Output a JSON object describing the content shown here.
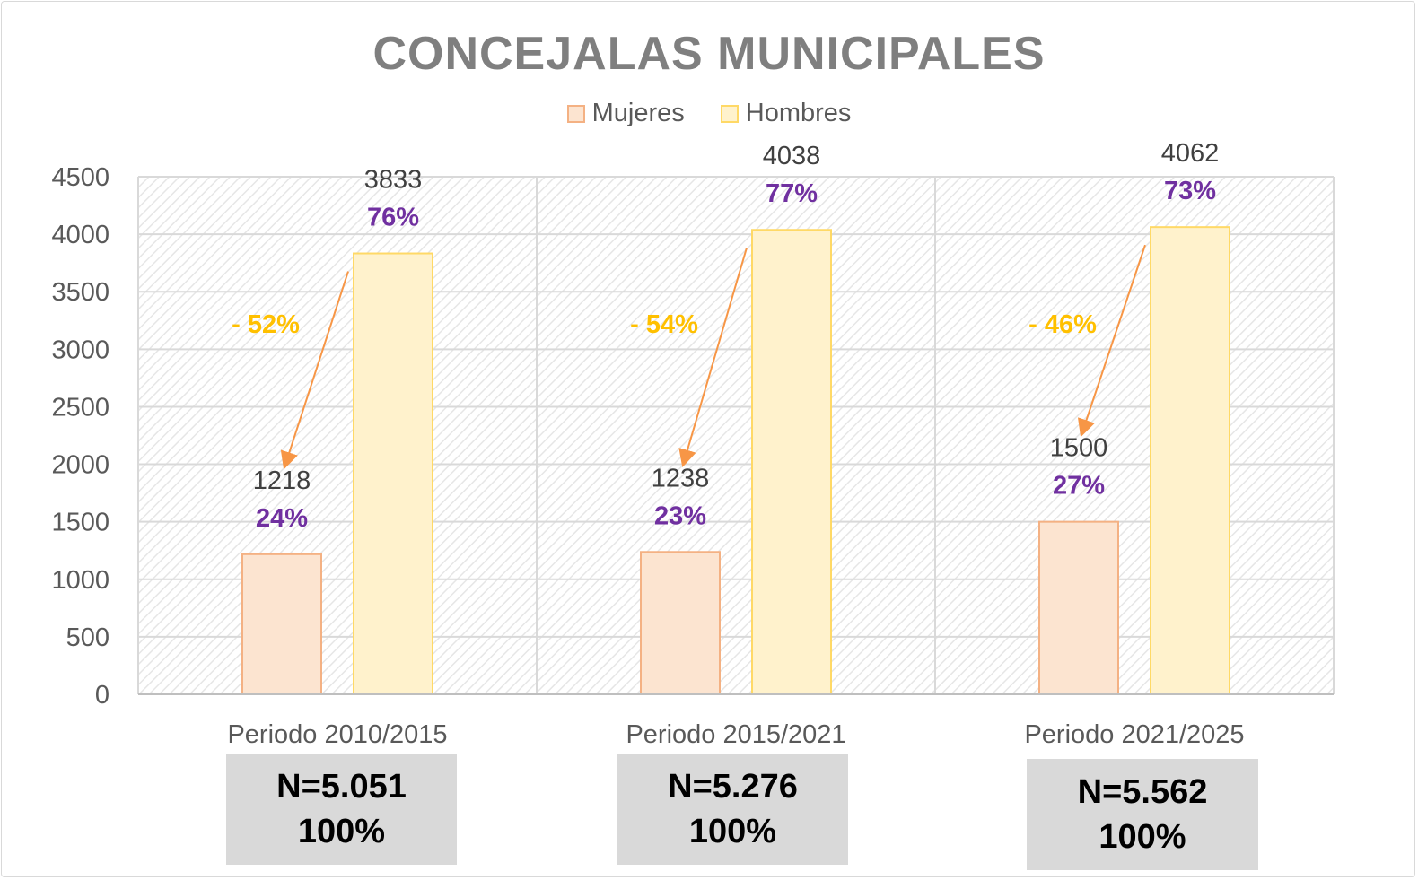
{
  "chart_data": {
    "type": "bar",
    "title": "CONCEJALAS MUNICIPALES",
    "categories": [
      "Periodo 2010/2015",
      "Periodo 2015/2021",
      "Periodo 2021/2025"
    ],
    "series": [
      {
        "name": "Mujeres",
        "values": [
          1218,
          1238,
          1500
        ],
        "percent_labels": [
          "24%",
          "23%",
          "27%"
        ],
        "fill": "#fce4d0",
        "stroke": "#f4b183"
      },
      {
        "name": "Hombres",
        "values": [
          3833,
          4038,
          4062
        ],
        "percent_labels": [
          "76%",
          "77%",
          "73%"
        ],
        "fill": "#fff2cc",
        "stroke": "#ffd966"
      }
    ],
    "ylim": [
      0,
      4500
    ],
    "yticks": [
      0,
      500,
      1000,
      1500,
      2000,
      2500,
      3000,
      3500,
      4000,
      4500
    ],
    "xlabel": "",
    "ylabel": "",
    "grid": true,
    "legend_position": "top-center",
    "gap_annotations": [
      "- 52%",
      "- 54%",
      "- 46%"
    ],
    "totals": [
      {
        "n": "N=5.051",
        "pct": "100%"
      },
      {
        "n": "N=5.276",
        "pct": "100%"
      },
      {
        "n": "N=5.562",
        "pct": "100%"
      }
    ]
  },
  "colors": {
    "title": "#7f7f7f",
    "axis_text": "#595959",
    "value_label": "#404040",
    "percent_label": "#7030a0",
    "gap_label": "#ffc000",
    "arrow": "#f79646",
    "total_box": "#d9d9d9",
    "grid": "#d9d9d9"
  }
}
